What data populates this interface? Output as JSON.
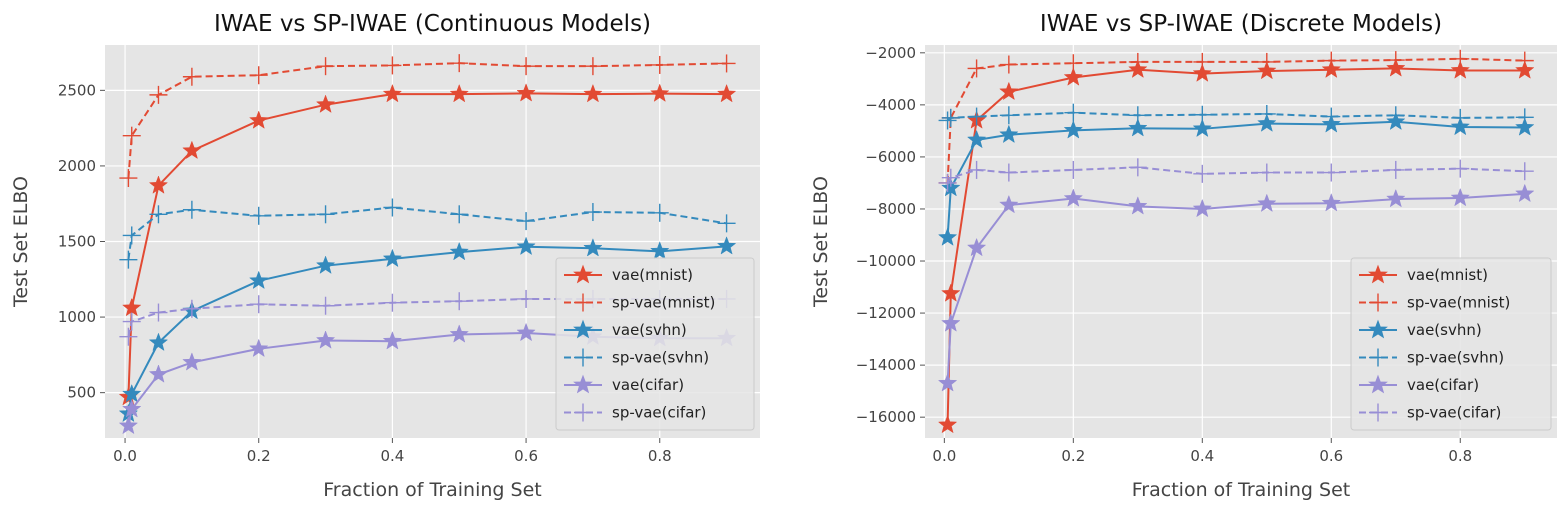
{
  "colors": {
    "mnist": "#e24a33",
    "svhn": "#348abd",
    "cifar": "#988ed5",
    "panel_bg": "#e5e5e5",
    "grid": "#ffffff"
  },
  "chart_data": [
    {
      "type": "line",
      "title": "IWAE vs SP-IWAE (Continuous Models)",
      "xlabel": "Fraction of Training Set",
      "ylabel": "Test Set ELBO",
      "xlim": [
        -0.03,
        0.95
      ],
      "ylim": [
        200,
        2800
      ],
      "xticks": [
        0.0,
        0.2,
        0.4,
        0.6,
        0.8
      ],
      "xtick_labels": [
        "0.0",
        "0.2",
        "0.4",
        "0.6",
        "0.8"
      ],
      "yticks": [
        500,
        1000,
        1500,
        2000,
        2500
      ],
      "ytick_labels": [
        "500",
        "1000",
        "1500",
        "2000",
        "2500"
      ],
      "grid": true,
      "legend_position": "lower-right",
      "series": [
        {
          "name": "vae(mnist)",
          "style": "solid",
          "marker": "star",
          "color_key": "mnist",
          "x": [
            0.005,
            0.01,
            0.05,
            0.1,
            0.2,
            0.3,
            0.4,
            0.5,
            0.6,
            0.7,
            0.8,
            0.9
          ],
          "y": [
            470,
            1060,
            1870,
            2100,
            2300,
            2405,
            2475,
            2475,
            2480,
            2475,
            2478,
            2475
          ]
        },
        {
          "name": "sp-vae(mnist)",
          "style": "dashed",
          "marker": "plus",
          "color_key": "mnist",
          "x": [
            0.005,
            0.01,
            0.05,
            0.1,
            0.2,
            0.3,
            0.4,
            0.5,
            0.6,
            0.7,
            0.8,
            0.9
          ],
          "y": [
            1920,
            2200,
            2470,
            2590,
            2600,
            2660,
            2665,
            2680,
            2660,
            2660,
            2668,
            2678
          ]
        },
        {
          "name": "vae(svhn)",
          "style": "solid",
          "marker": "star",
          "color_key": "svhn",
          "x": [
            0.005,
            0.01,
            0.05,
            0.1,
            0.2,
            0.3,
            0.4,
            0.5,
            0.6,
            0.7,
            0.8,
            0.9
          ],
          "y": [
            360,
            490,
            830,
            1040,
            1240,
            1340,
            1385,
            1430,
            1465,
            1455,
            1435,
            1468
          ]
        },
        {
          "name": "sp-vae(svhn)",
          "style": "dashed",
          "marker": "plus",
          "color_key": "svhn",
          "x": [
            0.005,
            0.01,
            0.05,
            0.1,
            0.2,
            0.3,
            0.4,
            0.5,
            0.6,
            0.7,
            0.8,
            0.9
          ],
          "y": [
            1380,
            1540,
            1680,
            1710,
            1670,
            1680,
            1725,
            1680,
            1635,
            1695,
            1690,
            1620
          ]
        },
        {
          "name": "vae(cifar)",
          "style": "solid",
          "marker": "star",
          "color_key": "cifar",
          "x": [
            0.005,
            0.01,
            0.05,
            0.1,
            0.2,
            0.3,
            0.4,
            0.5,
            0.6,
            0.7,
            0.8,
            0.9
          ],
          "y": [
            280,
            390,
            620,
            700,
            790,
            845,
            840,
            885,
            895,
            870,
            860,
            860
          ]
        },
        {
          "name": "sp-vae(cifar)",
          "style": "dashed",
          "marker": "plus",
          "color_key": "cifar",
          "x": [
            0.005,
            0.01,
            0.05,
            0.1,
            0.2,
            0.3,
            0.4,
            0.5,
            0.6,
            0.7,
            0.8,
            0.9
          ],
          "y": [
            870,
            970,
            1030,
            1055,
            1085,
            1075,
            1095,
            1105,
            1120,
            1120,
            1120,
            1120
          ]
        }
      ]
    },
    {
      "type": "line",
      "title": "IWAE vs SP-IWAE (Discrete Models)",
      "xlabel": "Fraction of Training Set",
      "ylabel": "Test Set ELBO",
      "xlim": [
        -0.03,
        0.95
      ],
      "ylim": [
        -16800,
        -1700
      ],
      "xticks": [
        0.0,
        0.2,
        0.4,
        0.6,
        0.8
      ],
      "xtick_labels": [
        "0.0",
        "0.2",
        "0.4",
        "0.6",
        "0.8"
      ],
      "yticks": [
        -16000,
        -14000,
        -12000,
        -10000,
        -8000,
        -6000,
        -4000,
        -2000
      ],
      "ytick_labels": [
        "−16000",
        "−14000",
        "−12000",
        "−10000",
        "−8000",
        "−6000",
        "−4000",
        "−2000"
      ],
      "grid": true,
      "legend_position": "lower-right",
      "series": [
        {
          "name": "vae(mnist)",
          "style": "solid",
          "marker": "star",
          "color_key": "mnist",
          "x": [
            0.005,
            0.01,
            0.05,
            0.1,
            0.2,
            0.3,
            0.4,
            0.5,
            0.6,
            0.7,
            0.8,
            0.9
          ],
          "y": [
            -16300,
            -11250,
            -4600,
            -3500,
            -2950,
            -2650,
            -2800,
            -2700,
            -2650,
            -2600,
            -2680,
            -2680
          ]
        },
        {
          "name": "sp-vae(mnist)",
          "style": "dashed",
          "marker": "plus",
          "color_key": "mnist",
          "x": [
            0.005,
            0.01,
            0.05,
            0.1,
            0.2,
            0.3,
            0.4,
            0.5,
            0.6,
            0.7,
            0.8,
            0.9
          ],
          "y": [
            -7000,
            -4500,
            -2600,
            -2450,
            -2400,
            -2350,
            -2350,
            -2350,
            -2300,
            -2280,
            -2230,
            -2300
          ]
        },
        {
          "name": "vae(svhn)",
          "style": "solid",
          "marker": "star",
          "color_key": "svhn",
          "x": [
            0.005,
            0.01,
            0.05,
            0.1,
            0.2,
            0.3,
            0.4,
            0.5,
            0.6,
            0.7,
            0.8,
            0.9
          ],
          "y": [
            -9100,
            -7200,
            -5350,
            -5150,
            -4980,
            -4900,
            -4920,
            -4720,
            -4750,
            -4650,
            -4850,
            -4870
          ]
        },
        {
          "name": "sp-vae(svhn)",
          "style": "dashed",
          "marker": "plus",
          "color_key": "svhn",
          "x": [
            0.005,
            0.01,
            0.05,
            0.1,
            0.2,
            0.3,
            0.4,
            0.5,
            0.6,
            0.7,
            0.8,
            0.9
          ],
          "y": [
            -4600,
            -4500,
            -4450,
            -4400,
            -4300,
            -4400,
            -4380,
            -4350,
            -4450,
            -4400,
            -4500,
            -4480
          ]
        },
        {
          "name": "vae(cifar)",
          "style": "solid",
          "marker": "star",
          "color_key": "cifar",
          "x": [
            0.005,
            0.01,
            0.05,
            0.1,
            0.2,
            0.3,
            0.4,
            0.5,
            0.6,
            0.7,
            0.8,
            0.9
          ],
          "y": [
            -14700,
            -12400,
            -9500,
            -7850,
            -7600,
            -7900,
            -8000,
            -7800,
            -7780,
            -7620,
            -7580,
            -7420
          ]
        },
        {
          "name": "sp-vae(cifar)",
          "style": "dashed",
          "marker": "plus",
          "color_key": "cifar",
          "x": [
            0.005,
            0.01,
            0.05,
            0.1,
            0.2,
            0.3,
            0.4,
            0.5,
            0.6,
            0.7,
            0.8,
            0.9
          ],
          "y": [
            -7000,
            -6800,
            -6500,
            -6600,
            -6500,
            -6400,
            -6650,
            -6600,
            -6600,
            -6500,
            -6450,
            -6550
          ]
        }
      ]
    }
  ]
}
